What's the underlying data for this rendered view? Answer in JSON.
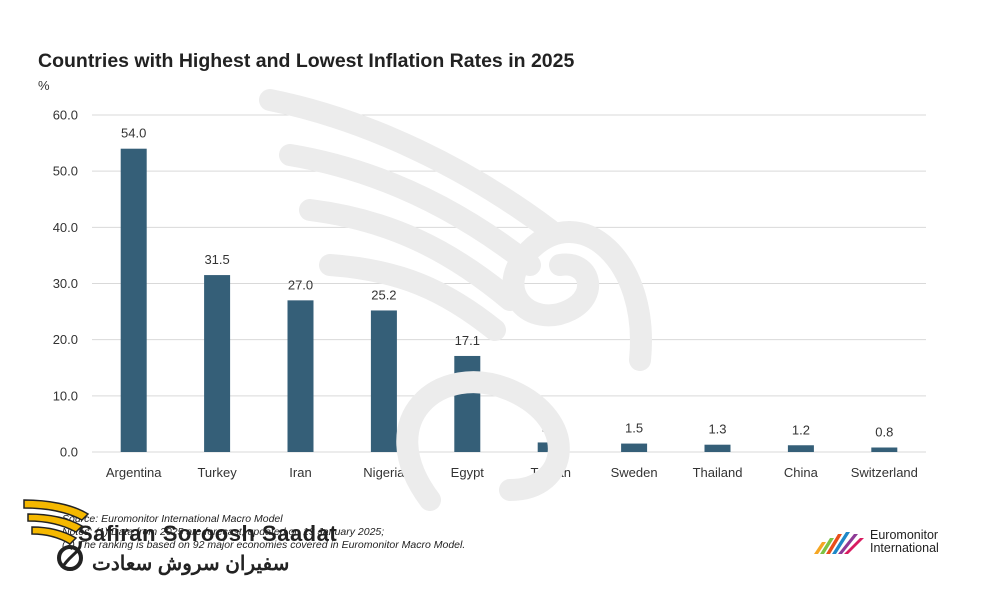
{
  "chart_data": {
    "type": "bar",
    "title": "Countries with Highest and Lowest Inflation Rates in 2025",
    "ylabel": "%",
    "xlabel": "",
    "categories": [
      "Argentina",
      "Turkey",
      "Iran",
      "Nigeria",
      "Egypt",
      "Taiwan",
      "Sweden",
      "Thailand",
      "China",
      "Switzerland"
    ],
    "values": [
      54.0,
      31.5,
      27.0,
      25.2,
      17.1,
      1.7,
      1.5,
      1.3,
      1.2,
      0.8
    ],
    "value_labels": [
      "54.0",
      "31.5",
      "27.0",
      "25.2",
      "17.1",
      "1.7",
      "1.5",
      "1.3",
      "1.2",
      "0.8"
    ],
    "yticks": [
      "0.0",
      "10.0",
      "20.0",
      "30.0",
      "40.0",
      "50.0",
      "60.0"
    ],
    "ylim": [
      0,
      60
    ],
    "grid": true,
    "legend": "none",
    "bar_color": "#355f78"
  },
  "source": {
    "line1": "Source: Euromonitor International Macro Model",
    "line2": "Notes: (1) Data from 2025 are forecast, updated on 13 January 2025;",
    "line3": "(2) The ranking is based on 92 major economies covered in Euromonitor Macro Model."
  },
  "logos": {
    "safiran_latin": "Safiran Soroosh Saadat",
    "safiran_persian": "سفیران سروش سعادت",
    "euromonitor_line1": "Euromonitor",
    "euromonitor_line2": "International"
  },
  "colors": {
    "bar": "#355f78",
    "grid": "#d9d9d9",
    "axis_text": "#333333",
    "safiran_yellow": "#f5b800"
  }
}
